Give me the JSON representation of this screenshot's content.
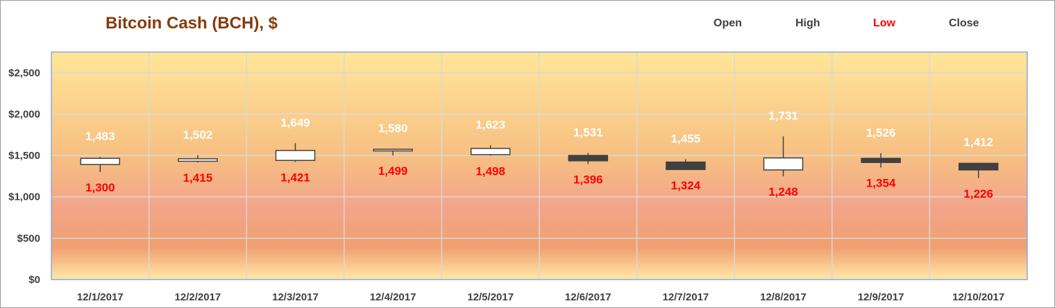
{
  "chart_data": {
    "type": "candlestick",
    "title": "Bitcoin Cash (BCH), $",
    "legend": {
      "placement": "top-right",
      "entries": [
        "Open",
        "High",
        "Low",
        "Close"
      ]
    },
    "legend_colors": {
      "Open": "#404040",
      "High": "#404040",
      "Low": "#ff0000",
      "Close": "#404040"
    },
    "categories": [
      "12/1/2017",
      "12/2/2017",
      "12/3/2017",
      "12/4/2017",
      "12/5/2017",
      "12/6/2017",
      "12/7/2017",
      "12/8/2017",
      "12/9/2017",
      "12/10/2017"
    ],
    "open": [
      1390,
      1430,
      1440,
      1555,
      1510,
      1500,
      1420,
      1325,
      1465,
      1405
    ],
    "high": [
      1483,
      1502,
      1649,
      1580,
      1623,
      1531,
      1455,
      1731,
      1526,
      1412
    ],
    "low": [
      1300,
      1415,
      1421,
      1499,
      1498,
      1396,
      1324,
      1248,
      1354,
      1226
    ],
    "close": [
      1465,
      1460,
      1560,
      1575,
      1585,
      1435,
      1330,
      1470,
      1415,
      1325
    ],
    "high_labels": [
      "1,483",
      "1,502",
      "1,649",
      "1,580",
      "1,623",
      "1,531",
      "1,455",
      "1,731",
      "1,526",
      "1,412"
    ],
    "low_labels": [
      "1,300",
      "1,415",
      "1,421",
      "1,499",
      "1,498",
      "1,396",
      "1,324",
      "1,248",
      "1,354",
      "1,226"
    ],
    "y_ticks": [
      0,
      500,
      1000,
      1500,
      2000,
      2500
    ],
    "y_tick_labels": [
      "$0",
      "$500",
      "$1,000",
      "$1,500",
      "$2,000",
      "$2,500"
    ],
    "ylim": [
      0,
      2750
    ],
    "grid": true,
    "colors": {
      "up_fill": "#ffffff",
      "down_fill": "#404040",
      "candle_stroke": "#404040",
      "grid": "#d9d9d9",
      "plot_border": "#8ea9db",
      "title": "#843c0c",
      "high_label": "#ffffff",
      "low_label": "#ff0000",
      "tick_label": "#404040"
    }
  }
}
